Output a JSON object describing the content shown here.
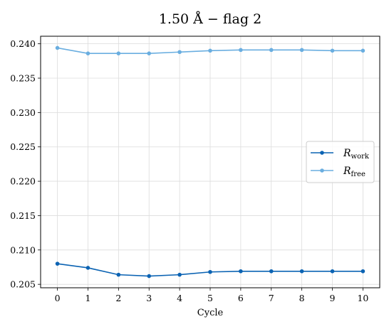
{
  "chart_data": {
    "type": "line",
    "title": "1.50 Å − flag 2",
    "xlabel": "Cycle",
    "ylabel": "",
    "x": [
      0,
      1,
      2,
      3,
      4,
      5,
      6,
      7,
      8,
      9,
      10
    ],
    "xlim": [
      -0.55,
      10.55
    ],
    "ylim": [
      0.2045,
      0.2411
    ],
    "yticks": [
      "0.205",
      "0.210",
      "0.215",
      "0.220",
      "0.225",
      "0.230",
      "0.235",
      "0.240"
    ],
    "xticks": [
      "0",
      "1",
      "2",
      "3",
      "4",
      "5",
      "6",
      "7",
      "8",
      "9",
      "10"
    ],
    "grid": true,
    "legend_position": "center-right",
    "series": [
      {
        "name": "R",
        "subscript": "work",
        "color": "#0b63b3",
        "values": [
          0.208,
          0.2074,
          0.2064,
          0.2062,
          0.2064,
          0.2068,
          0.2069,
          0.2069,
          0.2069,
          0.2069,
          0.2069
        ]
      },
      {
        "name": "R",
        "subscript": "free",
        "color": "#6aaee0",
        "values": [
          0.2394,
          0.2386,
          0.2386,
          0.2386,
          0.2388,
          0.239,
          0.2391,
          0.2391,
          0.2391,
          0.239,
          0.239
        ]
      }
    ]
  }
}
